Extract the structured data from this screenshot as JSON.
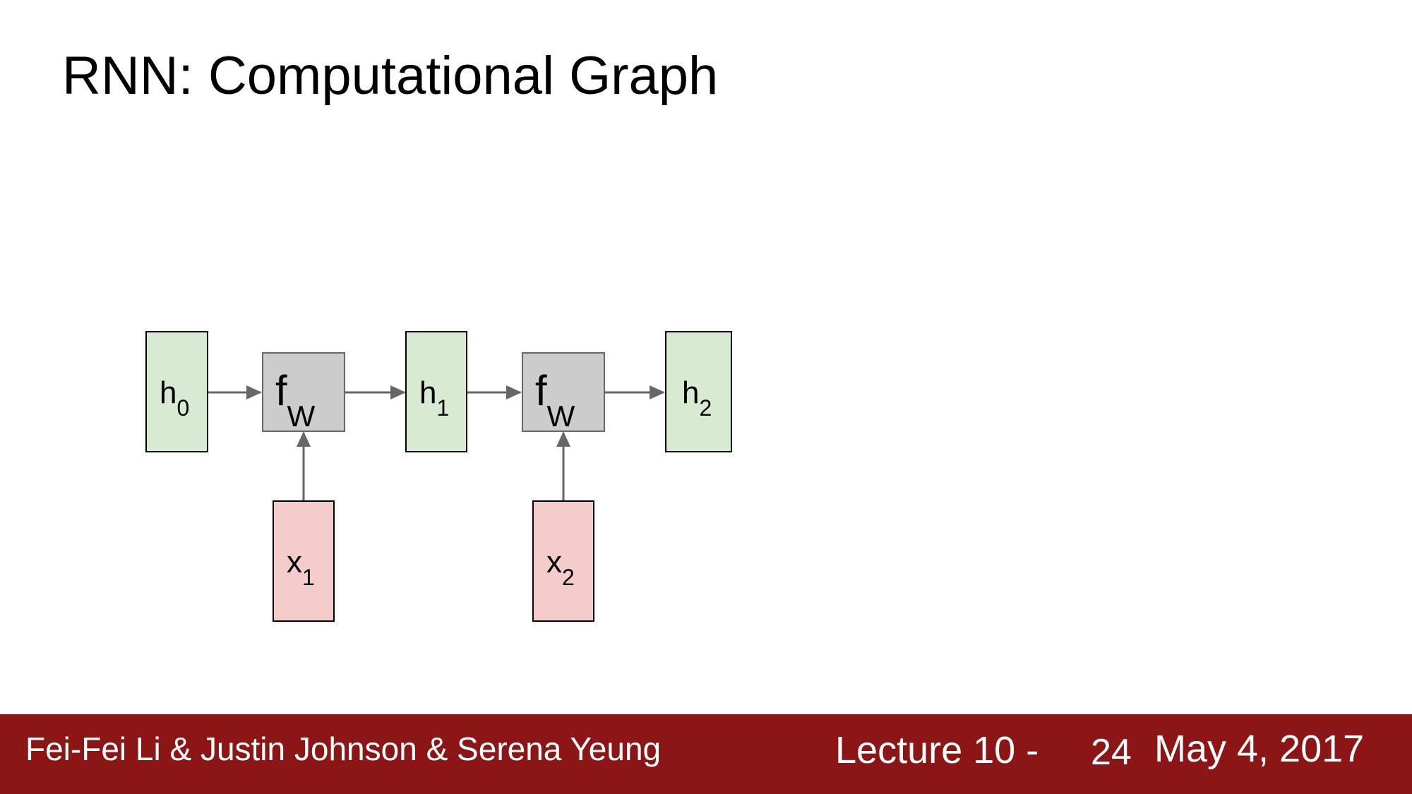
{
  "slide": {
    "title": "RNN: Computational Graph"
  },
  "diagram": {
    "nodes": [
      {
        "id": "h0",
        "base": "h",
        "sub": "0",
        "kind": "state"
      },
      {
        "id": "fw1",
        "base": "f",
        "sub": "W",
        "kind": "function"
      },
      {
        "id": "h1",
        "base": "h",
        "sub": "1",
        "kind": "state"
      },
      {
        "id": "fw2",
        "base": "f",
        "sub": "W",
        "kind": "function"
      },
      {
        "id": "h2",
        "base": "h",
        "sub": "2",
        "kind": "state"
      },
      {
        "id": "x1",
        "base": "x",
        "sub": "1",
        "kind": "input"
      },
      {
        "id": "x2",
        "base": "x",
        "sub": "2",
        "kind": "input"
      }
    ],
    "edges": [
      [
        "h0",
        "fw1"
      ],
      [
        "fw1",
        "h1"
      ],
      [
        "h1",
        "fw2"
      ],
      [
        "fw2",
        "h2"
      ],
      [
        "x1",
        "fw1"
      ],
      [
        "x2",
        "fw2"
      ]
    ],
    "colors": {
      "state_fill": "#d9ead3",
      "input_fill": "#f4cccc",
      "function_fill": "#cccccc",
      "arrow": "#666666"
    }
  },
  "footer": {
    "authors": "Fei-Fei Li & Justin Johnson & Serena Yeung",
    "lecture": "Lecture 10 -",
    "page": "24",
    "date": "May 4, 2017",
    "color": "#8c1515"
  }
}
